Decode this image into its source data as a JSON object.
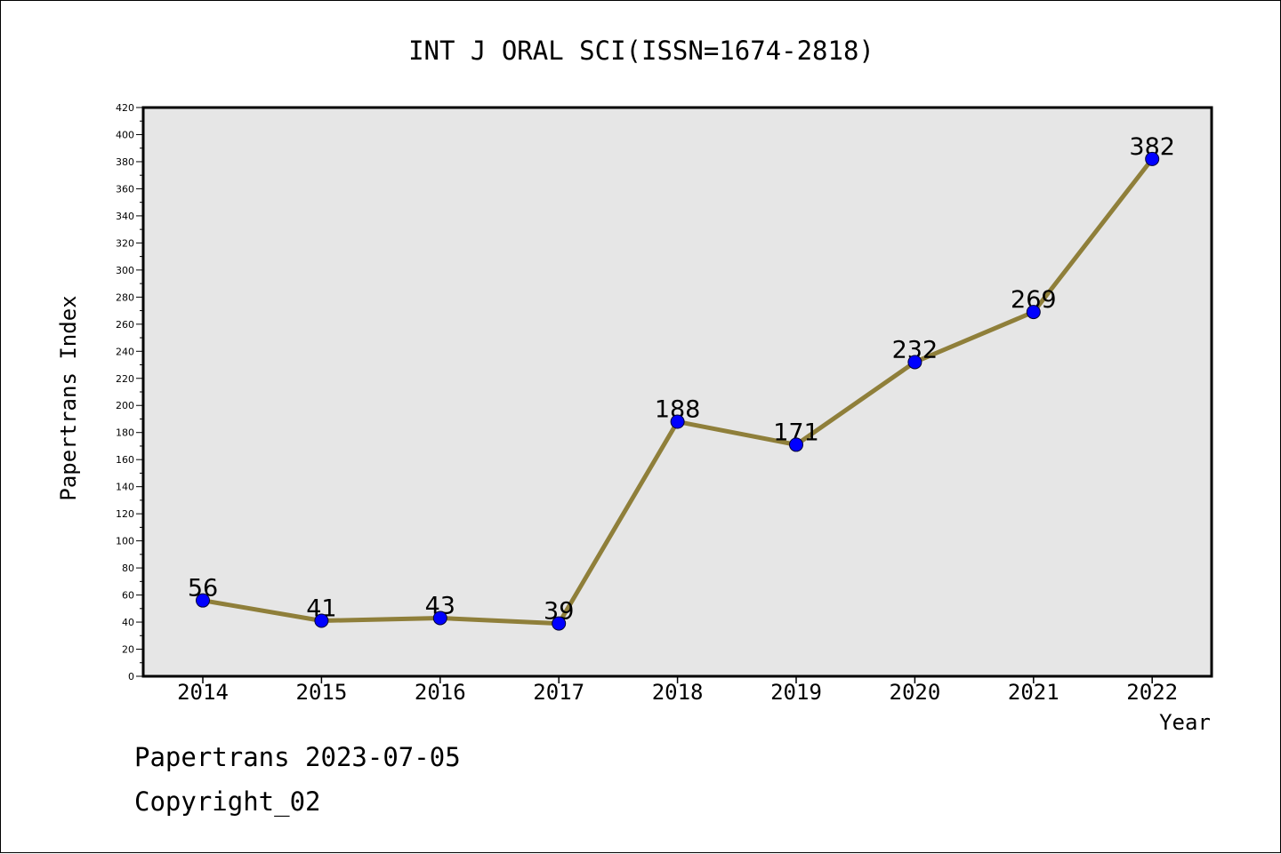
{
  "chart_data": {
    "type": "line",
    "title": "INT J ORAL SCI(ISSN=1674-2818)",
    "xlabel": "Year",
    "ylabel": "Papertrans Index",
    "categories": [
      "2014",
      "2015",
      "2016",
      "2017",
      "2018",
      "2019",
      "2020",
      "2021",
      "2022"
    ],
    "series": [
      {
        "values": [
          56,
          41,
          43,
          39,
          188,
          171,
          232,
          269,
          382
        ]
      }
    ],
    "data_labels": [
      "56",
      "41",
      "43",
      "39",
      "188",
      "171",
      "232",
      "269",
      "382"
    ],
    "ylim": [
      0,
      420
    ],
    "y_ticks": [
      "0",
      "20",
      "40",
      "60",
      "80",
      "100",
      "120",
      "140",
      "160",
      "180",
      "200",
      "220",
      "240",
      "260",
      "280",
      "300",
      "320",
      "340",
      "360",
      "380",
      "400",
      "420"
    ],
    "grid": false,
    "legend": "none",
    "colors": {
      "line": "#8f7f3a",
      "marker": "#0000ff",
      "plot_background": "#e6e6e6"
    }
  },
  "footer": {
    "date_line": "Papertrans 2023-07-05",
    "copyright_line": "Copyright_02"
  }
}
